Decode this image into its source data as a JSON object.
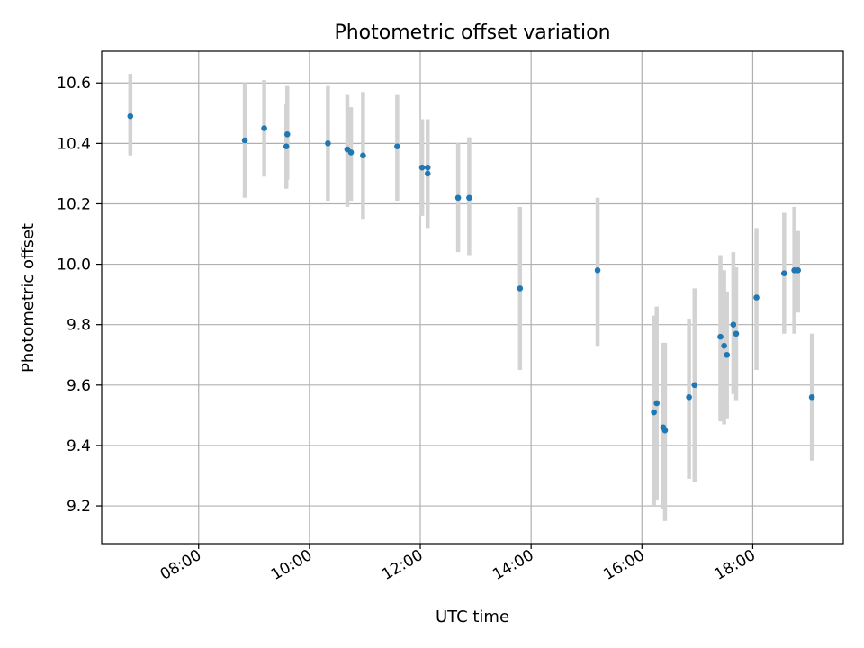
{
  "chart_data": {
    "type": "scatter",
    "title": "Photometric offset variation",
    "xlabel": "UTC time",
    "ylabel": "Photometric offset",
    "x_ticks": [
      "08:00",
      "10:00",
      "12:00",
      "14:00",
      "16:00",
      "18:00"
    ],
    "x_tick_hours": [
      8,
      10,
      12,
      14,
      16,
      18
    ],
    "y_ticks": [
      "9.2",
      "9.4",
      "9.6",
      "9.8",
      "10.0",
      "10.2",
      "10.4",
      "10.6"
    ],
    "y_tick_values": [
      9.2,
      9.4,
      9.6,
      9.8,
      10.0,
      10.2,
      10.4,
      10.6
    ],
    "xlim": [
      "06:15",
      "19:38"
    ],
    "ylim": [
      9.075,
      10.705
    ],
    "grid": true,
    "marker_color": "#1f77b4",
    "errorbar_color": "#d3d3d3",
    "points": [
      {
        "time": "06:46",
        "y": 10.49,
        "err_low": 10.36,
        "err_high": 10.63
      },
      {
        "time": "08:50",
        "y": 10.41,
        "err_low": 10.22,
        "err_high": 10.6
      },
      {
        "time": "09:11",
        "y": 10.45,
        "err_low": 10.29,
        "err_high": 10.61
      },
      {
        "time": "09:35",
        "y": 10.39,
        "err_low": 10.25,
        "err_high": 10.53
      },
      {
        "time": "09:36",
        "y": 10.43,
        "err_low": 10.28,
        "err_high": 10.59
      },
      {
        "time": "10:20",
        "y": 10.4,
        "err_low": 10.21,
        "err_high": 10.59
      },
      {
        "time": "10:41",
        "y": 10.38,
        "err_low": 10.19,
        "err_high": 10.56
      },
      {
        "time": "10:45",
        "y": 10.37,
        "err_low": 10.21,
        "err_high": 10.52
      },
      {
        "time": "10:58",
        "y": 10.36,
        "err_low": 10.15,
        "err_high": 10.57
      },
      {
        "time": "11:35",
        "y": 10.39,
        "err_low": 10.21,
        "err_high": 10.56
      },
      {
        "time": "12:02",
        "y": 10.32,
        "err_low": 10.16,
        "err_high": 10.48
      },
      {
        "time": "12:08",
        "y": 10.32,
        "err_low": 10.16,
        "err_high": 10.48
      },
      {
        "time": "12:08",
        "y": 10.3,
        "err_low": 10.12,
        "err_high": 10.48
      },
      {
        "time": "12:41",
        "y": 10.22,
        "err_low": 10.04,
        "err_high": 10.4
      },
      {
        "time": "12:53",
        "y": 10.22,
        "err_low": 10.03,
        "err_high": 10.42
      },
      {
        "time": "13:48",
        "y": 9.92,
        "err_low": 9.65,
        "err_high": 10.19
      },
      {
        "time": "15:12",
        "y": 9.98,
        "err_low": 9.73,
        "err_high": 10.22
      },
      {
        "time": "16:13",
        "y": 9.51,
        "err_low": 9.2,
        "err_high": 9.83
      },
      {
        "time": "16:16",
        "y": 9.54,
        "err_low": 9.22,
        "err_high": 9.86
      },
      {
        "time": "16:23",
        "y": 9.46,
        "err_low": 9.19,
        "err_high": 9.74
      },
      {
        "time": "16:25",
        "y": 9.45,
        "err_low": 9.15,
        "err_high": 9.74
      },
      {
        "time": "16:51",
        "y": 9.56,
        "err_low": 9.29,
        "err_high": 9.82
      },
      {
        "time": "16:57",
        "y": 9.6,
        "err_low": 9.28,
        "err_high": 9.92
      },
      {
        "time": "17:25",
        "y": 9.76,
        "err_low": 9.48,
        "err_high": 10.03
      },
      {
        "time": "17:29",
        "y": 9.73,
        "err_low": 9.47,
        "err_high": 9.98
      },
      {
        "time": "17:32",
        "y": 9.7,
        "err_low": 9.49,
        "err_high": 9.91
      },
      {
        "time": "17:39",
        "y": 9.8,
        "err_low": 9.57,
        "err_high": 10.04
      },
      {
        "time": "17:42",
        "y": 9.77,
        "err_low": 9.55,
        "err_high": 9.99
      },
      {
        "time": "18:04",
        "y": 9.89,
        "err_low": 9.65,
        "err_high": 10.12
      },
      {
        "time": "18:34",
        "y": 9.97,
        "err_low": 9.77,
        "err_high": 10.17
      },
      {
        "time": "18:45",
        "y": 9.98,
        "err_low": 9.77,
        "err_high": 10.19
      },
      {
        "time": "18:49",
        "y": 9.98,
        "err_low": 9.84,
        "err_high": 10.11
      },
      {
        "time": "19:04",
        "y": 9.56,
        "err_low": 9.35,
        "err_high": 9.77
      }
    ]
  }
}
